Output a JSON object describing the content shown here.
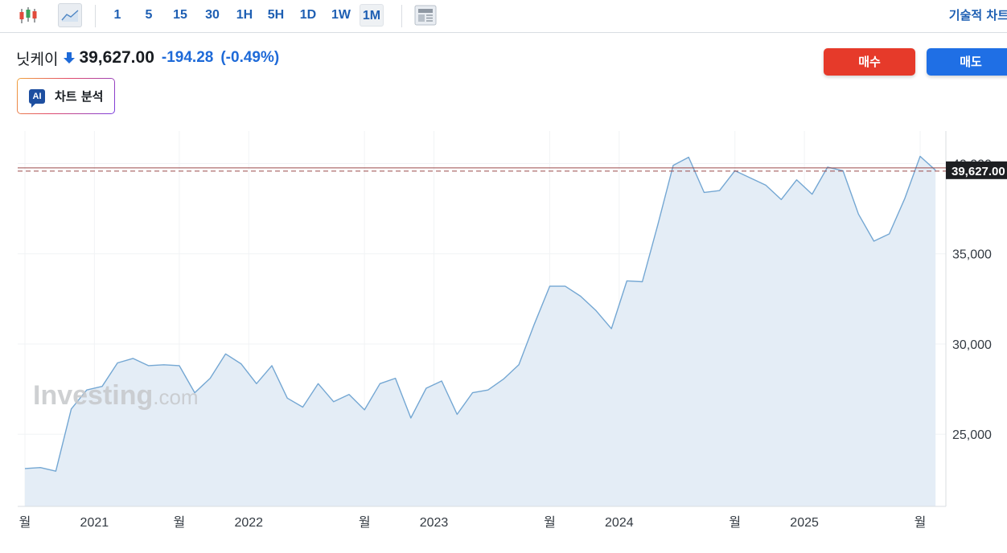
{
  "toolbar": {
    "intervals": [
      "1",
      "5",
      "15",
      "30",
      "1H",
      "5H",
      "1D",
      "1W",
      "1M"
    ],
    "active_interval": "1M",
    "technical_chart_link": "기술적 차트"
  },
  "instrument": {
    "name": "닛케이",
    "price": "39,627.00",
    "change": "-194.28",
    "change_pct": "(-0.49%)",
    "direction": "down"
  },
  "buttons": {
    "buy": "매수",
    "sell": "매도",
    "ai_analysis": "차트 분석",
    "ai_badge": "AI"
  },
  "colors": {
    "line": "#74a7d3",
    "area": "#e4edf6",
    "buy": "#e63a2a",
    "sell": "#1f6fe5",
    "accent": "#1e6ad8",
    "price_line": "#9b4a4a",
    "label_bg": "#1d1f22"
  },
  "watermark": {
    "main": "Investing",
    "suffix": ".com"
  },
  "chart_data": {
    "type": "area",
    "y_ticks": [
      "25,000",
      "30,000",
      "35,000",
      "40,000"
    ],
    "y_tick_values": [
      25000,
      30000,
      35000,
      40000
    ],
    "ylim": [
      21000,
      42400
    ],
    "x_tick_labels": [
      "월",
      "2021",
      "월",
      "2022",
      "월",
      "2023",
      "월",
      "2024",
      "월",
      "2025",
      "월"
    ],
    "x_tick_months": [
      0,
      4.5,
      10,
      14.5,
      22,
      26.5,
      34,
      38.5,
      46,
      50.5,
      58
    ],
    "last_value_label": "39,627.00",
    "last_value": 39627,
    "series": [
      {
        "values": [
          23100,
          23150,
          22950,
          26400,
          27450,
          27650,
          28950,
          29200,
          28800,
          28850,
          28800,
          27300,
          28100,
          29450,
          28900,
          27800,
          28800,
          27000,
          26500,
          27800,
          26800,
          27200,
          26350,
          27800,
          28100,
          25900,
          27550,
          27950,
          26100,
          27300,
          27450,
          28050,
          28850,
          31100,
          33200,
          33200,
          32650,
          31850,
          30850,
          33500,
          33450,
          36600,
          39900,
          40350,
          38400,
          38500,
          39600,
          39200,
          38800,
          38000,
          39100,
          38300,
          39800,
          39600,
          37200,
          35700,
          36100,
          38050,
          40400,
          39627
        ]
      }
    ]
  }
}
